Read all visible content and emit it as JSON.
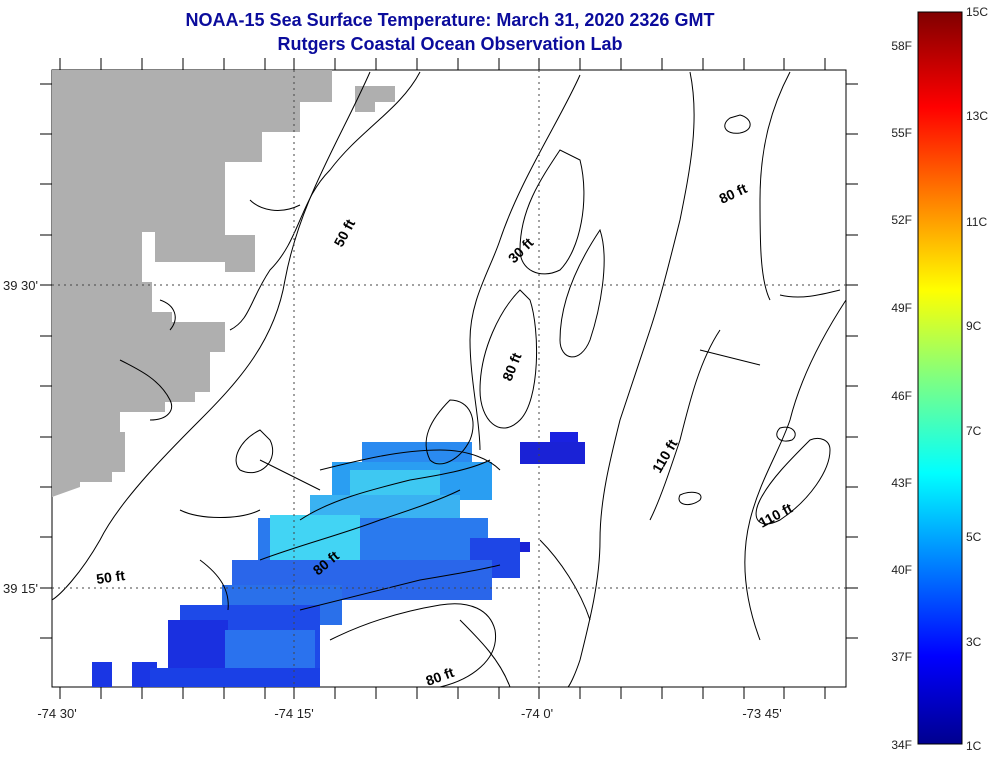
{
  "title": {
    "line1": "NOAA-15 Sea Surface Temperature:  March 31, 2020 2326 GMT",
    "line2": "Rutgers Coastal Ocean Observation Lab"
  },
  "axes": {
    "x_ticks": [
      "-74 30'",
      "-74 15'",
      "-74 0'",
      "-73 45'"
    ],
    "y_ticks": [
      "39 30'",
      "39 15'"
    ]
  },
  "contour_labels": [
    "50 ft",
    "30 ft",
    "80 ft",
    "80 ft",
    "110 ft",
    "110 ft",
    "50 ft",
    "80 ft",
    "80 ft"
  ],
  "colorbar": {
    "fahrenheit": [
      "58F",
      "55F",
      "52F",
      "49F",
      "46F",
      "43F",
      "40F",
      "37F",
      "34F"
    ],
    "celsius": [
      "15C",
      "13C",
      "11C",
      "9C",
      "7C",
      "5C",
      "3C",
      "1C"
    ]
  },
  "colors": {
    "land": "#afafaf",
    "title": "#0b0c9c"
  }
}
